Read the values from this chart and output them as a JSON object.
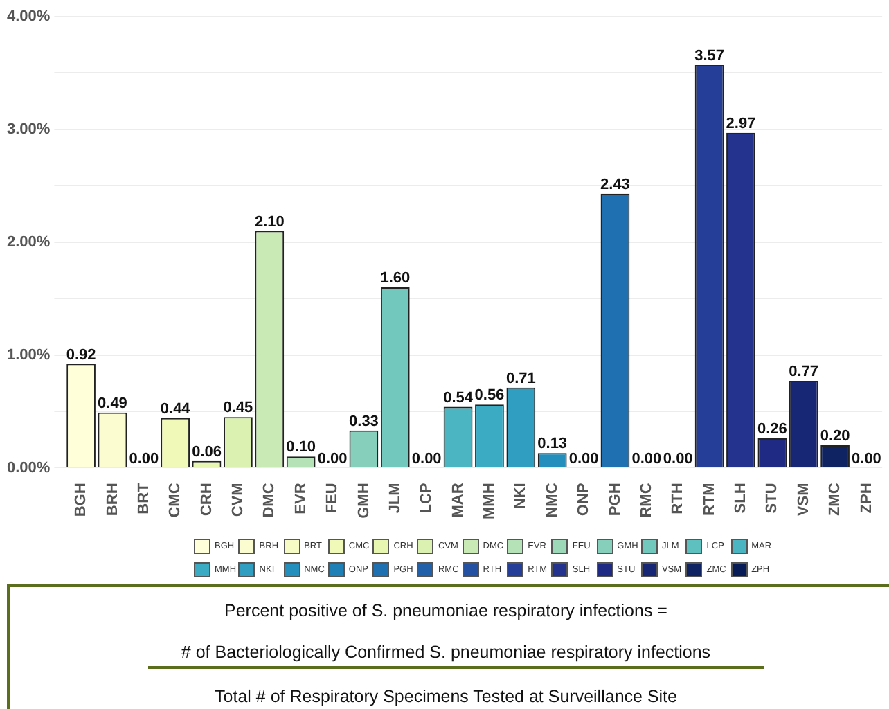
{
  "chart_data": {
    "type": "bar",
    "categories": [
      "BGH",
      "BRH",
      "BRT",
      "CMC",
      "CRH",
      "CVM",
      "DMC",
      "EVR",
      "FEU",
      "GMH",
      "JLM",
      "LCP",
      "MAR",
      "MMH",
      "NKI",
      "NMC",
      "ONP",
      "PGH",
      "RMC",
      "RTH",
      "RTM",
      "SLH",
      "STU",
      "VSM",
      "ZMC",
      "ZPH"
    ],
    "series": [
      {
        "name": "BGH",
        "color": "#ffffd9",
        "values": [
          0.92,
          null,
          null,
          null,
          null,
          null,
          null,
          null,
          null,
          null,
          null,
          null,
          null,
          null,
          null,
          null,
          null,
          null,
          null,
          null,
          null,
          null,
          null,
          null,
          null,
          null
        ],
        "value_labels": [
          "0.92",
          null,
          null,
          null,
          null,
          null,
          null,
          null,
          null,
          null,
          null,
          null,
          null,
          null,
          null,
          null,
          null,
          null,
          null,
          null,
          null,
          null,
          null,
          null,
          null,
          null
        ]
      },
      {
        "name": "BRH",
        "color": "#fbfdd0",
        "values": [
          null,
          0.49,
          null,
          null,
          null,
          null,
          null,
          null,
          null,
          null,
          null,
          null,
          null,
          null,
          null,
          null,
          null,
          null,
          null,
          null,
          null,
          null,
          null,
          null,
          null,
          null
        ],
        "value_labels": [
          null,
          "0.49",
          null,
          null,
          null,
          null,
          null,
          null,
          null,
          null,
          null,
          null,
          null,
          null,
          null,
          null,
          null,
          null,
          null,
          null,
          null,
          null,
          null,
          null,
          null,
          null
        ]
      },
      {
        "name": "BRT",
        "color": "#f6fbc6",
        "values": [
          null,
          null,
          0.0,
          null,
          null,
          null,
          null,
          null,
          null,
          null,
          null,
          null,
          null,
          null,
          null,
          null,
          null,
          null,
          null,
          null,
          null,
          null,
          null,
          null,
          null,
          null
        ],
        "value_labels": [
          null,
          null,
          "0.00",
          null,
          null,
          null,
          null,
          null,
          null,
          null,
          null,
          null,
          null,
          null,
          null,
          null,
          null,
          null,
          null,
          null,
          null,
          null,
          null,
          null,
          null,
          null
        ]
      },
      {
        "name": "CMC",
        "color": "#f0f9b8",
        "values": [
          null,
          null,
          null,
          0.44,
          null,
          null,
          null,
          null,
          null,
          null,
          null,
          null,
          null,
          null,
          null,
          null,
          null,
          null,
          null,
          null,
          null,
          null,
          null,
          null,
          null,
          null
        ],
        "value_labels": [
          null,
          null,
          null,
          "0.44",
          null,
          null,
          null,
          null,
          null,
          null,
          null,
          null,
          null,
          null,
          null,
          null,
          null,
          null,
          null,
          null,
          null,
          null,
          null,
          null,
          null,
          null
        ]
      },
      {
        "name": "CRH",
        "color": "#e7f6b1",
        "values": [
          null,
          null,
          null,
          null,
          0.06,
          null,
          null,
          null,
          null,
          null,
          null,
          null,
          null,
          null,
          null,
          null,
          null,
          null,
          null,
          null,
          null,
          null,
          null,
          null,
          null,
          null
        ],
        "value_labels": [
          null,
          null,
          null,
          null,
          "0.06",
          null,
          null,
          null,
          null,
          null,
          null,
          null,
          null,
          null,
          null,
          null,
          null,
          null,
          null,
          null,
          null,
          null,
          null,
          null,
          null,
          null
        ]
      },
      {
        "name": "CVM",
        "color": "#daf1b2",
        "values": [
          null,
          null,
          null,
          null,
          null,
          0.45,
          null,
          null,
          null,
          null,
          null,
          null,
          null,
          null,
          null,
          null,
          null,
          null,
          null,
          null,
          null,
          null,
          null,
          null,
          null,
          null
        ],
        "value_labels": [
          null,
          null,
          null,
          null,
          null,
          "0.45",
          null,
          null,
          null,
          null,
          null,
          null,
          null,
          null,
          null,
          null,
          null,
          null,
          null,
          null,
          null,
          null,
          null,
          null,
          null,
          null
        ]
      },
      {
        "name": "DMC",
        "color": "#c9eab4",
        "values": [
          null,
          null,
          null,
          null,
          null,
          null,
          2.1,
          null,
          null,
          null,
          null,
          null,
          null,
          null,
          null,
          null,
          null,
          null,
          null,
          null,
          null,
          null,
          null,
          null,
          null,
          null
        ],
        "value_labels": [
          null,
          null,
          null,
          null,
          null,
          null,
          "2.10",
          null,
          null,
          null,
          null,
          null,
          null,
          null,
          null,
          null,
          null,
          null,
          null,
          null,
          null,
          null,
          null,
          null,
          null,
          null
        ]
      },
      {
        "name": "EVR",
        "color": "#b5e2b6",
        "values": [
          null,
          null,
          null,
          null,
          null,
          null,
          null,
          0.1,
          null,
          null,
          null,
          null,
          null,
          null,
          null,
          null,
          null,
          null,
          null,
          null,
          null,
          null,
          null,
          null,
          null,
          null
        ],
        "value_labels": [
          null,
          null,
          null,
          null,
          null,
          null,
          null,
          "0.10",
          null,
          null,
          null,
          null,
          null,
          null,
          null,
          null,
          null,
          null,
          null,
          null,
          null,
          null,
          null,
          null,
          null,
          null
        ]
      },
      {
        "name": "FEU",
        "color": "#9dd9b8",
        "values": [
          null,
          null,
          null,
          null,
          null,
          null,
          null,
          null,
          0.0,
          null,
          null,
          null,
          null,
          null,
          null,
          null,
          null,
          null,
          null,
          null,
          null,
          null,
          null,
          null,
          null,
          null
        ],
        "value_labels": [
          null,
          null,
          null,
          null,
          null,
          null,
          null,
          null,
          "0.00",
          null,
          null,
          null,
          null,
          null,
          null,
          null,
          null,
          null,
          null,
          null,
          null,
          null,
          null,
          null,
          null,
          null
        ]
      },
      {
        "name": "GMH",
        "color": "#86d0bb",
        "values": [
          null,
          null,
          null,
          null,
          null,
          null,
          null,
          null,
          null,
          0.33,
          null,
          null,
          null,
          null,
          null,
          null,
          null,
          null,
          null,
          null,
          null,
          null,
          null,
          null,
          null,
          null
        ],
        "value_labels": [
          null,
          null,
          null,
          null,
          null,
          null,
          null,
          null,
          null,
          "0.33",
          null,
          null,
          null,
          null,
          null,
          null,
          null,
          null,
          null,
          null,
          null,
          null,
          null,
          null,
          null,
          null
        ]
      },
      {
        "name": "JLM",
        "color": "#72c8bd",
        "values": [
          null,
          null,
          null,
          null,
          null,
          null,
          null,
          null,
          null,
          null,
          1.6,
          null,
          null,
          null,
          null,
          null,
          null,
          null,
          null,
          null,
          null,
          null,
          null,
          null,
          null,
          null
        ],
        "value_labels": [
          null,
          null,
          null,
          null,
          null,
          null,
          null,
          null,
          null,
          null,
          "1.60",
          null,
          null,
          null,
          null,
          null,
          null,
          null,
          null,
          null,
          null,
          null,
          null,
          null,
          null,
          null
        ]
      },
      {
        "name": "LCP",
        "color": "#5fc0c0",
        "values": [
          null,
          null,
          null,
          null,
          null,
          null,
          null,
          null,
          null,
          null,
          null,
          0.0,
          null,
          null,
          null,
          null,
          null,
          null,
          null,
          null,
          null,
          null,
          null,
          null,
          null,
          null
        ],
        "value_labels": [
          null,
          null,
          null,
          null,
          null,
          null,
          null,
          null,
          null,
          null,
          null,
          "0.00",
          null,
          null,
          null,
          null,
          null,
          null,
          null,
          null,
          null,
          null,
          null,
          null,
          null,
          null
        ]
      },
      {
        "name": "MAR",
        "color": "#4bb6c2",
        "values": [
          null,
          null,
          null,
          null,
          null,
          null,
          null,
          null,
          null,
          null,
          null,
          null,
          0.54,
          null,
          null,
          null,
          null,
          null,
          null,
          null,
          null,
          null,
          null,
          null,
          null,
          null
        ],
        "value_labels": [
          null,
          null,
          null,
          null,
          null,
          null,
          null,
          null,
          null,
          null,
          null,
          null,
          "0.54",
          null,
          null,
          null,
          null,
          null,
          null,
          null,
          null,
          null,
          null,
          null,
          null,
          null
        ]
      },
      {
        "name": "MMH",
        "color": "#3aabc3",
        "values": [
          null,
          null,
          null,
          null,
          null,
          null,
          null,
          null,
          null,
          null,
          null,
          null,
          null,
          0.56,
          null,
          null,
          null,
          null,
          null,
          null,
          null,
          null,
          null,
          null,
          null,
          null
        ],
        "value_labels": [
          null,
          null,
          null,
          null,
          null,
          null,
          null,
          null,
          null,
          null,
          null,
          null,
          null,
          "0.56",
          null,
          null,
          null,
          null,
          null,
          null,
          null,
          null,
          null,
          null,
          null,
          null
        ]
      },
      {
        "name": "NKI",
        "color": "#2f9ec1",
        "values": [
          null,
          null,
          null,
          null,
          null,
          null,
          null,
          null,
          null,
          null,
          null,
          null,
          null,
          null,
          0.71,
          null,
          null,
          null,
          null,
          null,
          null,
          null,
          null,
          null,
          null,
          null
        ],
        "value_labels": [
          null,
          null,
          null,
          null,
          null,
          null,
          null,
          null,
          null,
          null,
          null,
          null,
          null,
          null,
          "0.71",
          null,
          null,
          null,
          null,
          null,
          null,
          null,
          null,
          null,
          null,
          null
        ]
      },
      {
        "name": "NMC",
        "color": "#248fbd",
        "values": [
          null,
          null,
          null,
          null,
          null,
          null,
          null,
          null,
          null,
          null,
          null,
          null,
          null,
          null,
          null,
          0.13,
          null,
          null,
          null,
          null,
          null,
          null,
          null,
          null,
          null,
          null
        ],
        "value_labels": [
          null,
          null,
          null,
          null,
          null,
          null,
          null,
          null,
          null,
          null,
          null,
          null,
          null,
          null,
          null,
          "0.13",
          null,
          null,
          null,
          null,
          null,
          null,
          null,
          null,
          null,
          null
        ]
      },
      {
        "name": "ONP",
        "color": "#1f80b8",
        "values": [
          null,
          null,
          null,
          null,
          null,
          null,
          null,
          null,
          null,
          null,
          null,
          null,
          null,
          null,
          null,
          null,
          0.0,
          null,
          null,
          null,
          null,
          null,
          null,
          null,
          null,
          null
        ],
        "value_labels": [
          null,
          null,
          null,
          null,
          null,
          null,
          null,
          null,
          null,
          null,
          null,
          null,
          null,
          null,
          null,
          null,
          "0.00",
          null,
          null,
          null,
          null,
          null,
          null,
          null,
          null,
          null
        ]
      },
      {
        "name": "PGH",
        "color": "#1f70b0",
        "values": [
          null,
          null,
          null,
          null,
          null,
          null,
          null,
          null,
          null,
          null,
          null,
          null,
          null,
          null,
          null,
          null,
          null,
          2.43,
          null,
          null,
          null,
          null,
          null,
          null,
          null,
          null
        ],
        "value_labels": [
          null,
          null,
          null,
          null,
          null,
          null,
          null,
          null,
          null,
          null,
          null,
          null,
          null,
          null,
          null,
          null,
          null,
          "2.43",
          null,
          null,
          null,
          null,
          null,
          null,
          null,
          null
        ]
      },
      {
        "name": "RMC",
        "color": "#2260a9",
        "values": [
          null,
          null,
          null,
          null,
          null,
          null,
          null,
          null,
          null,
          null,
          null,
          null,
          null,
          null,
          null,
          null,
          null,
          null,
          0.0,
          null,
          null,
          null,
          null,
          null,
          null,
          null
        ],
        "value_labels": [
          null,
          null,
          null,
          null,
          null,
          null,
          null,
          null,
          null,
          null,
          null,
          null,
          null,
          null,
          null,
          null,
          null,
          null,
          "0.00",
          null,
          null,
          null,
          null,
          null,
          null,
          null
        ]
      },
      {
        "name": "RTH",
        "color": "#2451a1",
        "values": [
          null,
          null,
          null,
          null,
          null,
          null,
          null,
          null,
          null,
          null,
          null,
          null,
          null,
          null,
          null,
          null,
          null,
          null,
          null,
          0.0,
          null,
          null,
          null,
          null,
          null,
          null
        ],
        "value_labels": [
          null,
          null,
          null,
          null,
          null,
          null,
          null,
          null,
          null,
          null,
          null,
          null,
          null,
          null,
          null,
          null,
          null,
          null,
          null,
          "0.00",
          null,
          null,
          null,
          null,
          null,
          null
        ]
      },
      {
        "name": "RTM",
        "color": "#253f99",
        "values": [
          null,
          null,
          null,
          null,
          null,
          null,
          null,
          null,
          null,
          null,
          null,
          null,
          null,
          null,
          null,
          null,
          null,
          null,
          null,
          null,
          3.57,
          null,
          null,
          null,
          null,
          null
        ],
        "value_labels": [
          null,
          null,
          null,
          null,
          null,
          null,
          null,
          null,
          null,
          null,
          null,
          null,
          null,
          null,
          null,
          null,
          null,
          null,
          null,
          null,
          "3.57",
          null,
          null,
          null,
          null,
          null
        ]
      },
      {
        "name": "SLH",
        "color": "#23338e",
        "values": [
          null,
          null,
          null,
          null,
          null,
          null,
          null,
          null,
          null,
          null,
          null,
          null,
          null,
          null,
          null,
          null,
          null,
          null,
          null,
          null,
          null,
          2.97,
          null,
          null,
          null,
          null
        ],
        "value_labels": [
          null,
          null,
          null,
          null,
          null,
          null,
          null,
          null,
          null,
          null,
          null,
          null,
          null,
          null,
          null,
          null,
          null,
          null,
          null,
          null,
          null,
          "2.97",
          null,
          null,
          null,
          null
        ]
      },
      {
        "name": "STU",
        "color": "#1e2a83",
        "values": [
          null,
          null,
          null,
          null,
          null,
          null,
          null,
          null,
          null,
          null,
          null,
          null,
          null,
          null,
          null,
          null,
          null,
          null,
          null,
          null,
          null,
          null,
          0.26,
          null,
          null,
          null
        ],
        "value_labels": [
          null,
          null,
          null,
          null,
          null,
          null,
          null,
          null,
          null,
          null,
          null,
          null,
          null,
          null,
          null,
          null,
          null,
          null,
          null,
          null,
          null,
          null,
          "0.26",
          null,
          null,
          null
        ]
      },
      {
        "name": "VSM",
        "color": "#172776",
        "values": [
          null,
          null,
          null,
          null,
          null,
          null,
          null,
          null,
          null,
          null,
          null,
          null,
          null,
          null,
          null,
          null,
          null,
          null,
          null,
          null,
          null,
          null,
          null,
          0.77,
          null,
          null
        ],
        "value_labels": [
          null,
          null,
          null,
          null,
          null,
          null,
          null,
          null,
          null,
          null,
          null,
          null,
          null,
          null,
          null,
          null,
          null,
          null,
          null,
          null,
          null,
          null,
          null,
          "0.77",
          null,
          null
        ]
      },
      {
        "name": "ZMC",
        "color": "#0f2262",
        "values": [
          null,
          null,
          null,
          null,
          null,
          null,
          null,
          null,
          null,
          null,
          null,
          null,
          null,
          null,
          null,
          null,
          null,
          null,
          null,
          null,
          null,
          null,
          null,
          null,
          0.2,
          null
        ],
        "value_labels": [
          null,
          null,
          null,
          null,
          null,
          null,
          null,
          null,
          null,
          null,
          null,
          null,
          null,
          null,
          null,
          null,
          null,
          null,
          null,
          null,
          null,
          null,
          null,
          null,
          "0.20",
          null
        ]
      },
      {
        "name": "ZPH",
        "color": "#081d58",
        "values": [
          null,
          null,
          null,
          null,
          null,
          null,
          null,
          null,
          null,
          null,
          null,
          null,
          null,
          null,
          null,
          null,
          null,
          null,
          null,
          null,
          null,
          null,
          null,
          null,
          null,
          0.0
        ],
        "value_labels": [
          null,
          null,
          null,
          null,
          null,
          null,
          null,
          null,
          null,
          null,
          null,
          null,
          null,
          null,
          null,
          null,
          null,
          null,
          null,
          null,
          null,
          null,
          null,
          null,
          null,
          "0.00"
        ]
      }
    ],
    "ylim": [
      0,
      4
    ],
    "yticks": [
      {
        "value": 0,
        "label": "0.00%"
      },
      {
        "value": 0.5,
        "label": null
      },
      {
        "value": 1,
        "label": "1.00%"
      },
      {
        "value": 1.5,
        "label": null
      },
      {
        "value": 2,
        "label": "2.00%"
      },
      {
        "value": 2.5,
        "label": null
      },
      {
        "value": 3,
        "label": "3.00%"
      },
      {
        "value": 3.5,
        "label": null
      },
      {
        "value": 4,
        "label": "4.00%"
      }
    ],
    "grid": "y",
    "legend": "bottom",
    "annotations": [
      "Percent positive of S. pneumoniae respiratory infections =",
      "# of Bacteriologically Confirmed S. pneumoniae respiratory infections",
      "Total # of Respiratory Specimens Tested at Surveillance Site"
    ]
  }
}
